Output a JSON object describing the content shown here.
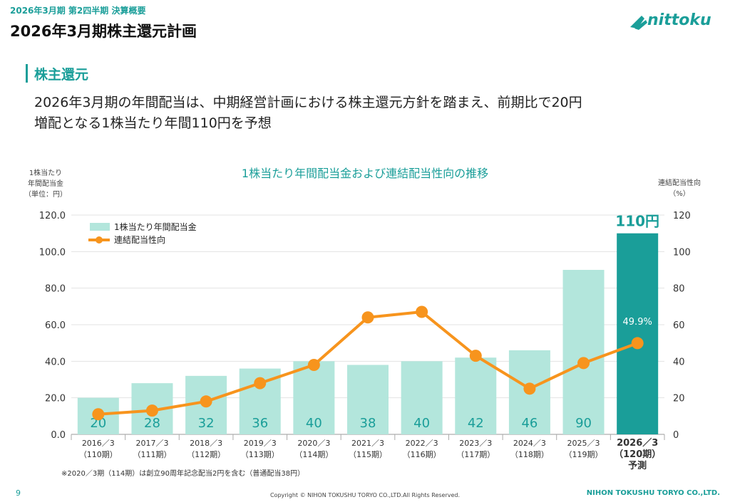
{
  "header": {
    "top_label": "2026年3月期 第2四半期 決算概要",
    "title": "2026年3月期株主還元計画",
    "logo_text": "nittoku"
  },
  "section": {
    "title": "株主還元",
    "description_line1": "2026年3月期の年間配当は、中期経営計画における株主還元方針を踏まえ、前期比で20円",
    "description_line2": "増配となる1株当たり年間110円を予想"
  },
  "chart_data": {
    "type": "bar",
    "title": "1株当たり年間配当金および連結配当性向の推移",
    "left_axis_label": [
      "1株当たり",
      "年間配当金",
      "（単位：円）"
    ],
    "right_axis_label": [
      "連結配当性向",
      "（%）"
    ],
    "categories": [
      [
        "2016／3",
        "（110期）"
      ],
      [
        "2017／3",
        "（111期）"
      ],
      [
        "2018／3",
        "（112期）"
      ],
      [
        "2019／3",
        "（113期）"
      ],
      [
        "2020／3",
        "（114期）"
      ],
      [
        "2021／3",
        "（115期）"
      ],
      [
        "2022／3",
        "（116期）"
      ],
      [
        "2023／3",
        "（117期）"
      ],
      [
        "2024／3",
        "（118期）"
      ],
      [
        "2025／3",
        "（119期）"
      ],
      [
        "2026／3",
        "（120期）",
        "予測"
      ]
    ],
    "series": [
      {
        "name": "1株当たり年間配当金",
        "type": "bar",
        "values": [
          20,
          28,
          32,
          36,
          40,
          38,
          40,
          42,
          46,
          90,
          110
        ],
        "labels": [
          "20",
          "28",
          "32",
          "36",
          "40",
          "38",
          "40",
          "42",
          "46",
          "90",
          "110円"
        ],
        "color": "#b3e6dc",
        "highlight_color": "#1a9e99"
      },
      {
        "name": "連結配当性向",
        "type": "line",
        "values": [
          11,
          13,
          18,
          28,
          38,
          64,
          67,
          43,
          25,
          39,
          49.9
        ],
        "highlight_label": "49.9%",
        "color": "#f7941d"
      }
    ],
    "y_left": {
      "min": 0,
      "max": 120,
      "ticks": [
        "0.0",
        "20.0",
        "40.0",
        "60.0",
        "80.0",
        "100.0",
        "120.0"
      ]
    },
    "y_right": {
      "min": 0,
      "max": 120,
      "ticks": [
        "0",
        "20",
        "40",
        "60",
        "80",
        "100",
        "120"
      ]
    },
    "grid": true,
    "legend_position": "top-left"
  },
  "footer": {
    "note": "※2020／3期（114期）は創立90周年記念配当2円を含む（普通配当38円）",
    "page_number": "9",
    "copyright": "Copyright © NIHON TOKUSHU TORYO CO.,LTD.All Rights Reserved.",
    "company": "NIHON TOKUSHU TORYO CO.,LTD."
  }
}
